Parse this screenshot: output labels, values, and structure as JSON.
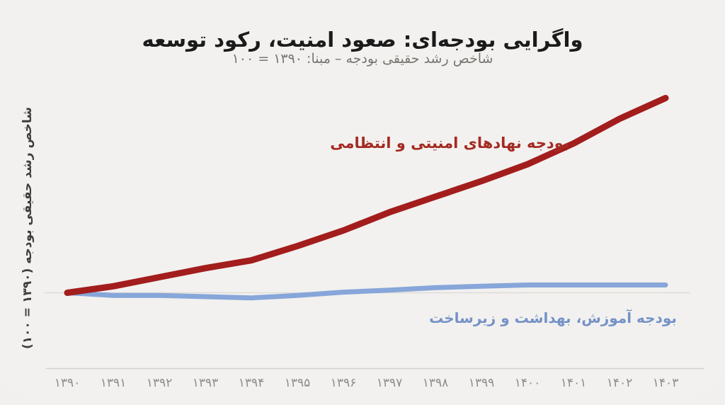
{
  "title": "واگرایی بودجه‌ای: صعود امنیت، رکود توسعه",
  "subtitle": "شاخص رشد حقیقی بودجه – مبنا: ۱۳۹۰ = ۱۰۰",
  "y_axis_label": "شاخص رشد حقیقی بودجه (۱۳۹۰ = ۱۰۰)",
  "chart_data": {
    "type": "line",
    "title": "واگرایی بودجه‌ای: صعود امنیت، رکود توسعه",
    "subtitle": "شاخص رشد حقیقی بودجه – مبنا: ۱۳۹۰ = ۱۰۰",
    "ylabel": "شاخص رشد حقیقی بودجه (۱۳۹۰ = ۱۰۰)",
    "xlabel": "",
    "categories": [
      "۱۳۹۰",
      "۱۳۹۱",
      "۱۳۹۲",
      "۱۳۹۳",
      "۱۳۹۴",
      "۱۳۹۵",
      "۱۳۹۶",
      "۱۳۹۷",
      "۱۳۹۸",
      "۱۳۹۹",
      "۱۴۰۰",
      "۱۴۰۱",
      "۱۴۰۲",
      "۱۴۰۳"
    ],
    "baseline_value": 100,
    "ylim": [
      90,
      258
    ],
    "grid": "single horizontal gridline at baseline 100",
    "legend_position": "inline colored labels on chart",
    "series": [
      {
        "name": "بودجه نهادهای امنیتی و انتظامی",
        "color": "#a31d1d",
        "label_color": "#a42a22",
        "values": [
          100,
          105,
          112,
          119,
          125,
          136,
          148,
          162,
          174,
          186,
          199,
          215,
          234,
          250
        ]
      },
      {
        "name": "بودجه آموزش، بهداشت و زیرساخت",
        "color": "#87a6d9",
        "label_color": "#7592c7",
        "values": [
          100,
          98,
          98,
          97,
          96,
          98,
          100.5,
          102,
          104,
          105,
          106,
          106,
          106,
          106
        ]
      }
    ]
  },
  "colors": {
    "background": "#f1f0ee",
    "title": "#1b1b1b",
    "subtitle": "#797672",
    "y_axis_label": "#3d3d3d",
    "tick_label": "#8e8c89",
    "gridline": "#dedcd8",
    "axis_line": "#d4d2cf"
  }
}
